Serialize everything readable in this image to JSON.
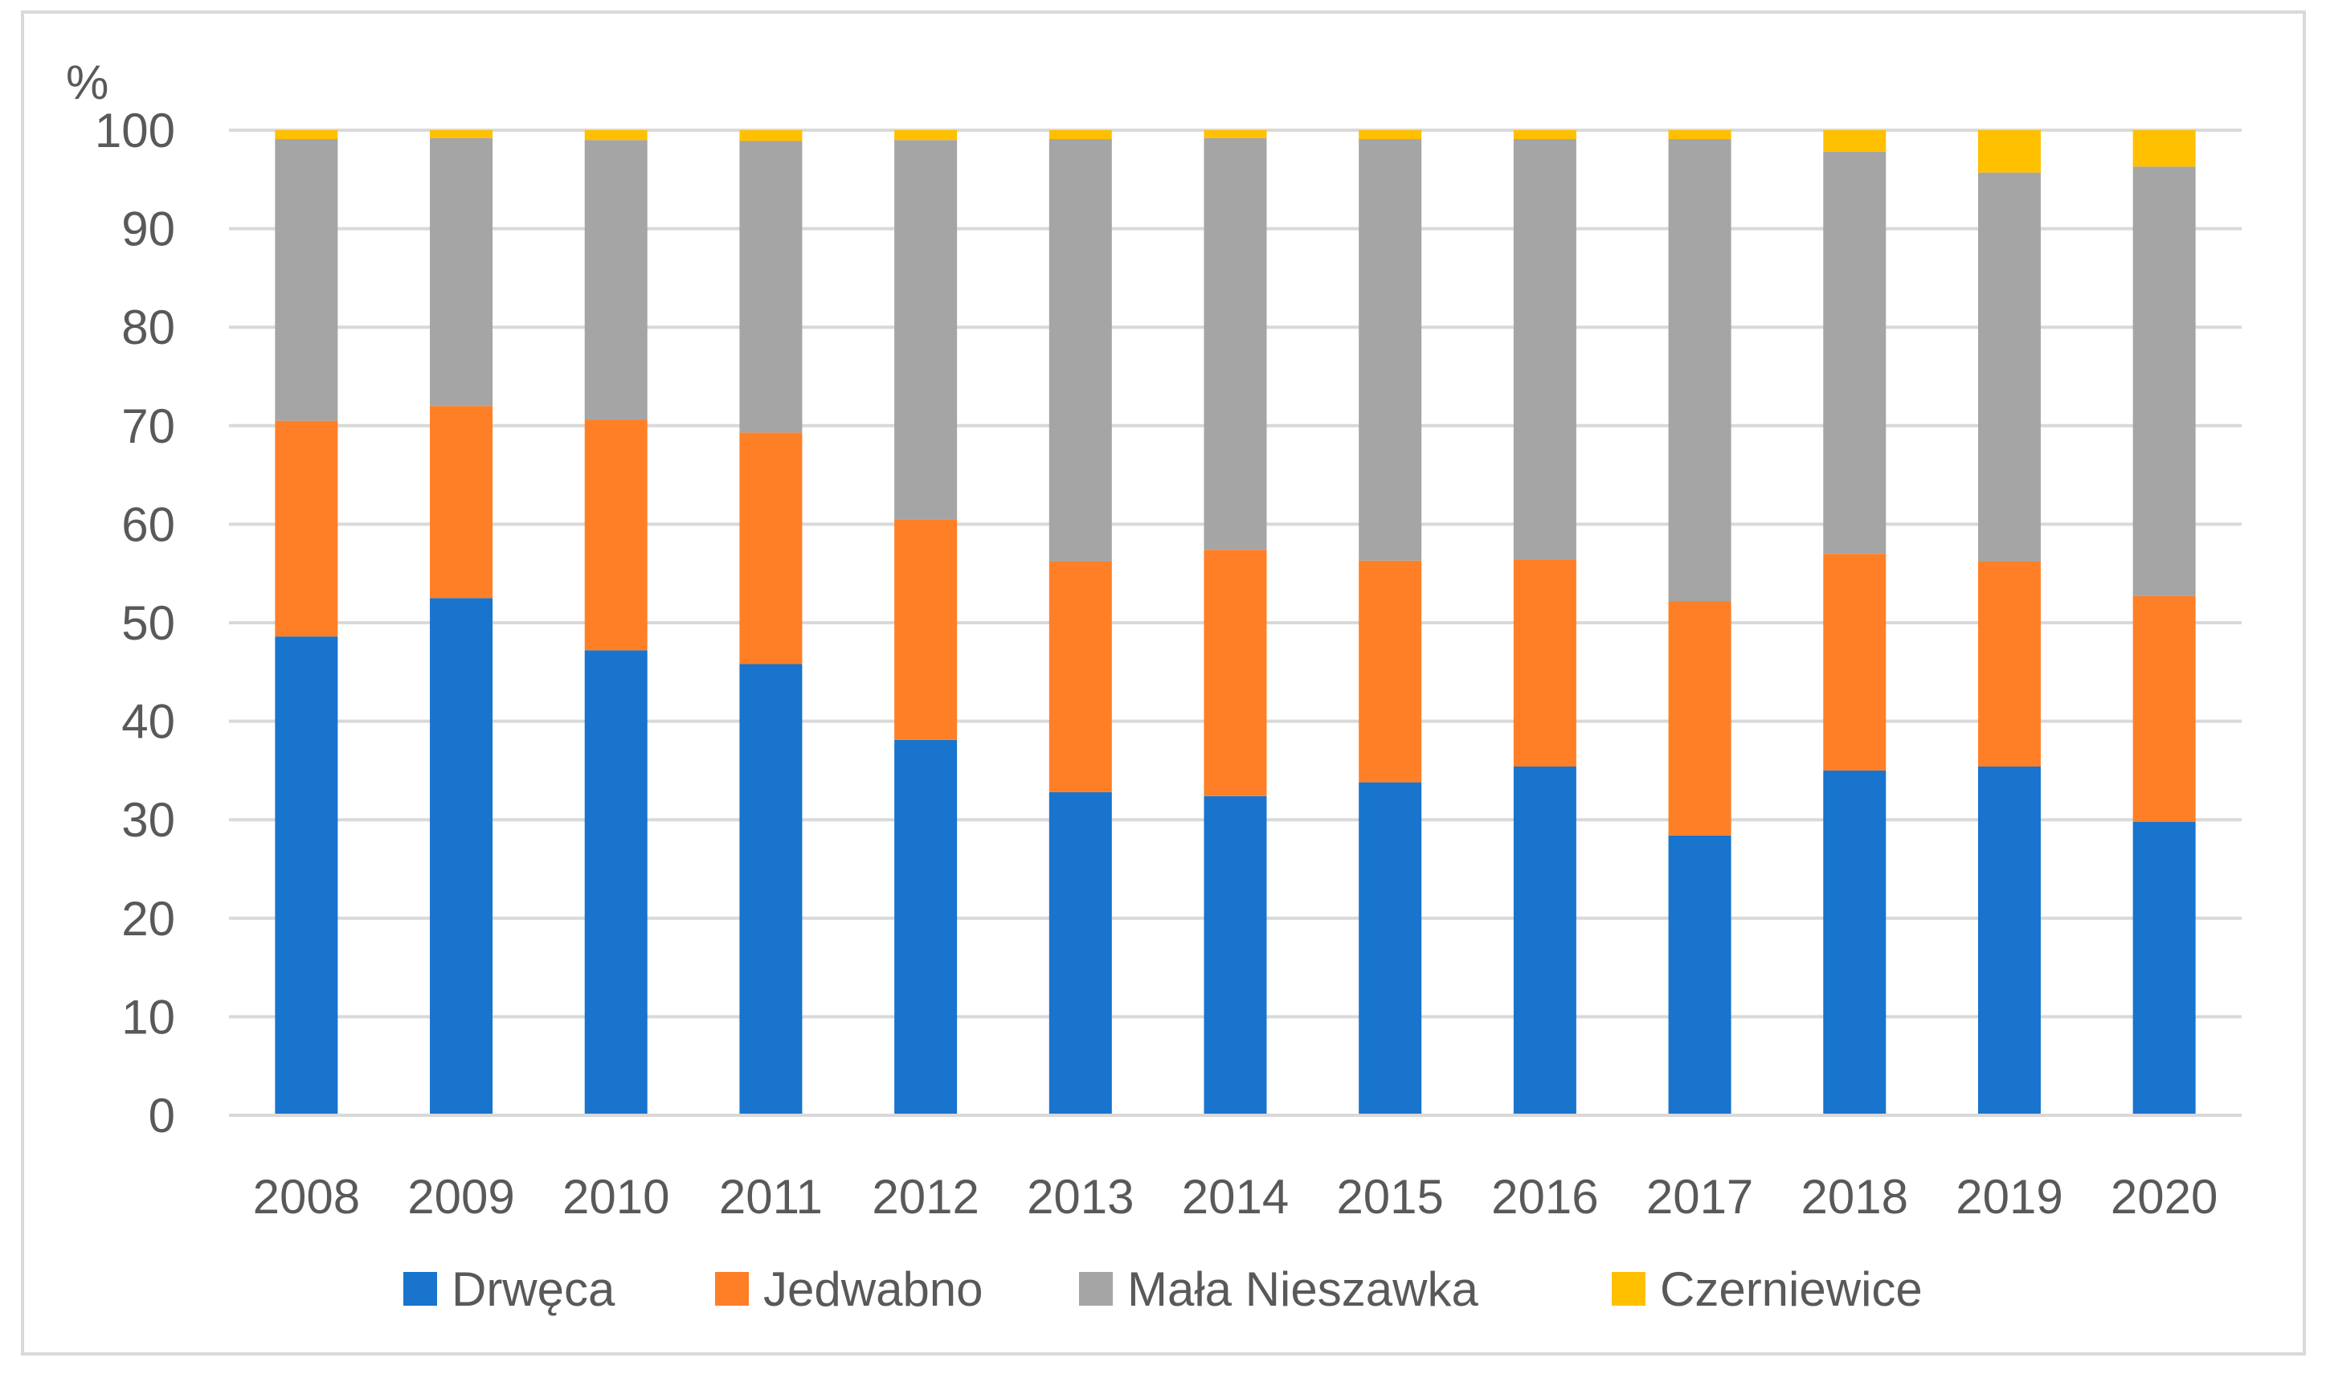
{
  "chart_data": {
    "type": "bar",
    "stacked": true,
    "title": "",
    "xlabel": "",
    "ylabel": "%",
    "ylim": [
      0,
      100
    ],
    "yticks": [
      0,
      10,
      20,
      30,
      40,
      50,
      60,
      70,
      80,
      90,
      100
    ],
    "grid": true,
    "legend_position": "bottom",
    "categories": [
      "2008",
      "2009",
      "2010",
      "2011",
      "2012",
      "2013",
      "2014",
      "2015",
      "2016",
      "2017",
      "2018",
      "2019",
      "2020"
    ],
    "series": [
      {
        "name": "Drwęca",
        "color": "#1874CD",
        "values": [
          48.6,
          52.5,
          47.2,
          45.8,
          38.1,
          32.8,
          32.4,
          33.8,
          35.4,
          28.4,
          35.0,
          35.4,
          29.8
        ]
      },
      {
        "name": "Jedwabno",
        "color": "#FF7F27",
        "values": [
          21.9,
          19.5,
          23.4,
          23.5,
          22.4,
          23.4,
          25.0,
          22.5,
          21.0,
          23.8,
          22.0,
          20.8,
          22.9
        ]
      },
      {
        "name": "Mała Nieszawka",
        "color": "#A5A5A5",
        "values": [
          28.6,
          27.2,
          28.4,
          29.6,
          38.5,
          42.9,
          41.8,
          42.8,
          42.7,
          46.9,
          40.8,
          39.5,
          43.6
        ]
      },
      {
        "name": "Czerniewice",
        "color": "#FFC000",
        "values": [
          0.9,
          0.8,
          1.0,
          1.1,
          1.0,
          0.9,
          0.8,
          0.9,
          0.9,
          0.9,
          2.2,
          4.3,
          3.7
        ]
      }
    ]
  }
}
